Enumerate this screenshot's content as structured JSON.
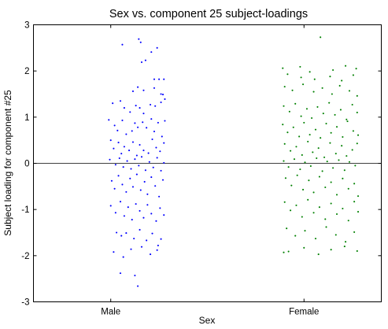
{
  "chart_data": {
    "type": "scatter",
    "title": "Sex vs. component 25 subject-loadings",
    "xlabel": "Sex",
    "ylabel": "Subject loading for component #25",
    "categories": [
      "Male",
      "Female"
    ],
    "ylim": [
      -3,
      3
    ],
    "yticks": [
      -3,
      -2,
      -1,
      0,
      1,
      2,
      3
    ],
    "reference_line": 0,
    "grid": false,
    "legend": "none",
    "series": [
      {
        "category": "Male",
        "color": "#0000ff",
        "points": [
          [
            -0.88,
            2.57
          ],
          [
            -0.71,
            2.69
          ],
          [
            -0.69,
            2.62
          ],
          [
            -0.68,
            2.19
          ],
          [
            -0.64,
            2.23
          ],
          [
            -0.58,
            2.41
          ],
          [
            -0.52,
            2.5
          ],
          [
            -0.55,
            1.82
          ],
          [
            -0.77,
            1.56
          ],
          [
            -0.72,
            1.65
          ],
          [
            -0.66,
            1.58
          ],
          [
            -0.55,
            1.63
          ],
          [
            -0.5,
            1.82
          ],
          [
            -0.48,
            1.5
          ],
          [
            -0.46,
            1.49
          ],
          [
            -0.45,
            1.82
          ],
          [
            -0.98,
            1.3
          ],
          [
            -0.9,
            1.35
          ],
          [
            -0.86,
            1.2
          ],
          [
            -0.8,
            1.11
          ],
          [
            -0.74,
            1.25
          ],
          [
            -0.7,
            1.2
          ],
          [
            -0.66,
            1.08
          ],
          [
            -0.59,
            1.27
          ],
          [
            -0.54,
            1.24
          ],
          [
            -0.48,
            1.32
          ],
          [
            -0.44,
            1.39
          ],
          [
            -1.02,
            0.94
          ],
          [
            -0.96,
            0.82
          ],
          [
            -0.93,
            0.71
          ],
          [
            -0.88,
            0.93
          ],
          [
            -0.84,
            0.63
          ],
          [
            -0.78,
            0.7
          ],
          [
            -0.75,
            0.87
          ],
          [
            -0.72,
            0.78
          ],
          [
            -0.67,
            0.89
          ],
          [
            -0.63,
            0.77
          ],
          [
            -0.58,
            0.96
          ],
          [
            -0.55,
            0.69
          ],
          [
            -0.51,
            0.88
          ],
          [
            -0.47,
            0.58
          ],
          [
            -0.44,
            0.92
          ],
          [
            -1.0,
            0.5
          ],
          [
            -0.97,
            0.32
          ],
          [
            -0.92,
            0.45
          ],
          [
            -0.89,
            0.21
          ],
          [
            -0.86,
            0.36
          ],
          [
            -0.81,
            0.28
          ],
          [
            -0.77,
            0.46
          ],
          [
            -0.73,
            0.17
          ],
          [
            -0.7,
            0.4
          ],
          [
            -0.66,
            0.28
          ],
          [
            -0.61,
            0.22
          ],
          [
            -0.57,
            0.52
          ],
          [
            -0.53,
            0.34
          ],
          [
            -0.49,
            0.26
          ],
          [
            -0.45,
            0.44
          ],
          [
            -1.01,
            0.08
          ],
          [
            -0.95,
            -0.03
          ],
          [
            -0.91,
            0.11
          ],
          [
            -0.87,
            -0.08
          ],
          [
            -0.83,
            0.05
          ],
          [
            -0.79,
            -0.12
          ],
          [
            -0.75,
            0.09
          ],
          [
            -0.71,
            -0.05
          ],
          [
            -0.68,
            0.14
          ],
          [
            -0.64,
            -0.15
          ],
          [
            -0.6,
            0.03
          ],
          [
            -0.56,
            -0.09
          ],
          [
            -0.52,
            0.12
          ],
          [
            -0.48,
            -0.16
          ],
          [
            -0.45,
            0.01
          ],
          [
            -0.99,
            -0.38
          ],
          [
            -0.96,
            -0.55
          ],
          [
            -0.92,
            -0.27
          ],
          [
            -0.88,
            -0.46
          ],
          [
            -0.84,
            -0.62
          ],
          [
            -0.8,
            -0.33
          ],
          [
            -0.77,
            -0.51
          ],
          [
            -0.73,
            -0.24
          ],
          [
            -0.69,
            -0.58
          ],
          [
            -0.65,
            -0.4
          ],
          [
            -0.62,
            -0.67
          ],
          [
            -0.58,
            -0.3
          ],
          [
            -0.54,
            -0.49
          ],
          [
            -0.5,
            -0.72
          ],
          [
            -0.46,
            -0.36
          ],
          [
            -1.0,
            -0.92
          ],
          [
            -0.95,
            -1.07
          ],
          [
            -0.9,
            -0.83
          ],
          [
            -0.86,
            -1.14
          ],
          [
            -0.82,
            -0.95
          ],
          [
            -0.78,
            -1.22
          ],
          [
            -0.74,
            -0.88
          ],
          [
            -0.7,
            -1.03
          ],
          [
            -0.66,
            -1.18
          ],
          [
            -0.62,
            -0.9
          ],
          [
            -0.58,
            -1.09
          ],
          [
            -0.53,
            -1.25
          ],
          [
            -0.49,
            -0.97
          ],
          [
            -0.45,
            -1.12
          ],
          [
            -0.94,
            -1.5
          ],
          [
            -0.89,
            -1.57
          ],
          [
            -0.84,
            -1.51
          ],
          [
            -0.76,
            -1.63
          ],
          [
            -0.7,
            -1.44
          ],
          [
            -0.63,
            -1.67
          ],
          [
            -0.57,
            -1.52
          ],
          [
            -0.51,
            -1.78
          ],
          [
            -0.48,
            -1.64
          ],
          [
            -0.97,
            -1.92
          ],
          [
            -0.87,
            -2.03
          ],
          [
            -0.79,
            -1.86
          ],
          [
            -0.68,
            -1.81
          ],
          [
            -0.59,
            -1.97
          ],
          [
            -0.52,
            -1.88
          ],
          [
            -0.9,
            -2.38
          ],
          [
            -0.75,
            -2.43
          ],
          [
            -0.72,
            -2.66
          ]
        ]
      },
      {
        "category": "Female",
        "color": "#008000",
        "points": [
          [
            1.17,
            2.73
          ],
          [
            0.78,
            2.06
          ],
          [
            0.96,
            2.09
          ],
          [
            1.06,
            1.98
          ],
          [
            1.3,
            2.02
          ],
          [
            1.43,
            2.11
          ],
          [
            1.54,
            2.05
          ],
          [
            0.83,
            1.93
          ],
          [
            0.97,
            1.86
          ],
          [
            1.11,
            1.82
          ],
          [
            1.27,
            1.88
          ],
          [
            1.39,
            1.79
          ],
          [
            1.51,
            1.91
          ],
          [
            0.8,
            1.66
          ],
          [
            0.88,
            1.58
          ],
          [
            0.99,
            1.71
          ],
          [
            1.1,
            1.55
          ],
          [
            1.19,
            1.63
          ],
          [
            1.29,
            1.5
          ],
          [
            1.37,
            1.68
          ],
          [
            1.47,
            1.57
          ],
          [
            1.55,
            1.46
          ],
          [
            0.79,
            1.24
          ],
          [
            0.85,
            1.12
          ],
          [
            0.91,
            1.29
          ],
          [
            0.97,
            1.02
          ],
          [
            1.03,
            1.18
          ],
          [
            1.08,
            0.98
          ],
          [
            1.14,
            1.22
          ],
          [
            1.2,
            1.08
          ],
          [
            1.26,
            1.31
          ],
          [
            1.32,
            1.05
          ],
          [
            1.38,
            1.16
          ],
          [
            1.44,
            0.95
          ],
          [
            1.5,
            1.27
          ],
          [
            1.55,
            1.1
          ],
          [
            0.78,
            0.84
          ],
          [
            0.83,
            0.67
          ],
          [
            0.89,
            0.78
          ],
          [
            0.95,
            0.58
          ],
          [
            1.0,
            0.88
          ],
          [
            1.06,
            0.62
          ],
          [
            1.12,
            0.73
          ],
          [
            1.17,
            0.55
          ],
          [
            1.23,
            0.86
          ],
          [
            1.28,
            0.66
          ],
          [
            1.34,
            0.79
          ],
          [
            1.4,
            0.57
          ],
          [
            1.45,
            0.91
          ],
          [
            1.51,
            0.7
          ],
          [
            1.56,
            0.61
          ],
          [
            0.8,
            0.42
          ],
          [
            0.86,
            0.27
          ],
          [
            0.92,
            0.36
          ],
          [
            0.98,
            0.18
          ],
          [
            1.04,
            0.47
          ],
          [
            1.09,
            0.24
          ],
          [
            1.15,
            0.33
          ],
          [
            1.21,
            0.13
          ],
          [
            1.27,
            0.44
          ],
          [
            1.33,
            0.21
          ],
          [
            1.39,
            0.38
          ],
          [
            1.44,
            0.16
          ],
          [
            1.5,
            0.29
          ],
          [
            1.55,
            0.43
          ],
          [
            0.79,
            0.05
          ],
          [
            0.84,
            -0.08
          ],
          [
            0.9,
            0.09
          ],
          [
            0.96,
            -0.13
          ],
          [
            1.01,
            0.02
          ],
          [
            1.07,
            -0.06
          ],
          [
            1.13,
            0.11
          ],
          [
            1.19,
            -0.17
          ],
          [
            1.24,
            0.04
          ],
          [
            1.3,
            -0.1
          ],
          [
            1.36,
            0.07
          ],
          [
            1.42,
            -0.15
          ],
          [
            1.47,
            0.03
          ],
          [
            1.53,
            -0.05
          ],
          [
            0.81,
            -0.32
          ],
          [
            0.87,
            -0.48
          ],
          [
            0.93,
            -0.26
          ],
          [
            0.99,
            -0.57
          ],
          [
            1.05,
            -0.37
          ],
          [
            1.1,
            -0.63
          ],
          [
            1.16,
            -0.29
          ],
          [
            1.22,
            -0.52
          ],
          [
            1.28,
            -0.41
          ],
          [
            1.34,
            -0.68
          ],
          [
            1.4,
            -0.33
          ],
          [
            1.46,
            -0.55
          ],
          [
            1.52,
            -0.44
          ],
          [
            1.56,
            -0.71
          ],
          [
            0.8,
            -0.84
          ],
          [
            0.86,
            -1.02
          ],
          [
            0.92,
            -0.91
          ],
          [
            0.98,
            -1.16
          ],
          [
            1.04,
            -0.79
          ],
          [
            1.1,
            -1.07
          ],
          [
            1.16,
            -0.95
          ],
          [
            1.22,
            -1.21
          ],
          [
            1.28,
            -0.87
          ],
          [
            1.34,
            -1.1
          ],
          [
            1.4,
            -0.98
          ],
          [
            1.46,
            -1.24
          ],
          [
            1.52,
            -0.83
          ],
          [
            1.56,
            -1.05
          ],
          [
            0.82,
            -1.41
          ],
          [
            0.91,
            -1.57
          ],
          [
            1.01,
            -1.46
          ],
          [
            1.12,
            -1.63
          ],
          [
            1.23,
            -1.38
          ],
          [
            1.33,
            -1.55
          ],
          [
            1.43,
            -1.7
          ],
          [
            1.52,
            -1.49
          ],
          [
            0.79,
            -1.93
          ],
          [
            0.84,
            -1.91
          ],
          [
            1.0,
            -1.83
          ],
          [
            1.15,
            -1.97
          ],
          [
            1.28,
            -1.87
          ],
          [
            1.42,
            -1.8
          ],
          [
            1.55,
            -1.9
          ]
        ]
      }
    ]
  }
}
